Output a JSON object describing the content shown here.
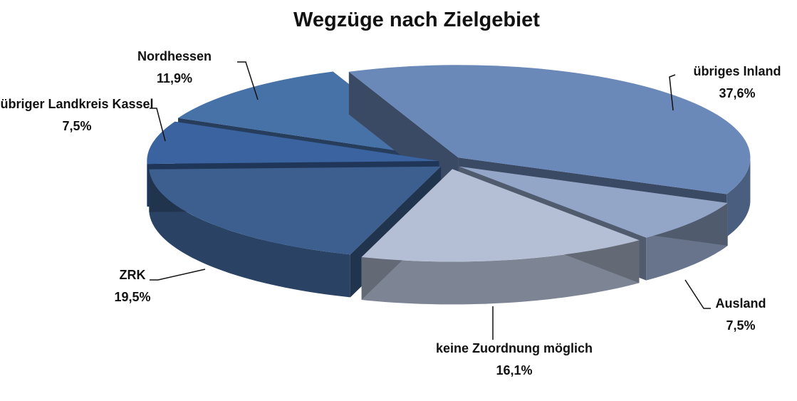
{
  "chart_data": {
    "type": "pie",
    "title": "Wegzüge nach Zielgebiet",
    "categories": [
      "übriges Inland",
      "Ausland",
      "keine Zuordnung möglich",
      "ZRK",
      "übriger Landkreis Kassel",
      "Nordhessen"
    ],
    "values": [
      37.6,
      7.5,
      16.1,
      19.5,
      7.5,
      11.9
    ],
    "value_labels": [
      "37,6%",
      "7,5%",
      "16,1%",
      "19,5%",
      "7,5%",
      "11,9%"
    ],
    "colors": [
      "#6a88b8",
      "#94a6c8",
      "#b4bfd6",
      "#3d5f8f",
      "#3a63a0",
      "#4672a8"
    ]
  }
}
